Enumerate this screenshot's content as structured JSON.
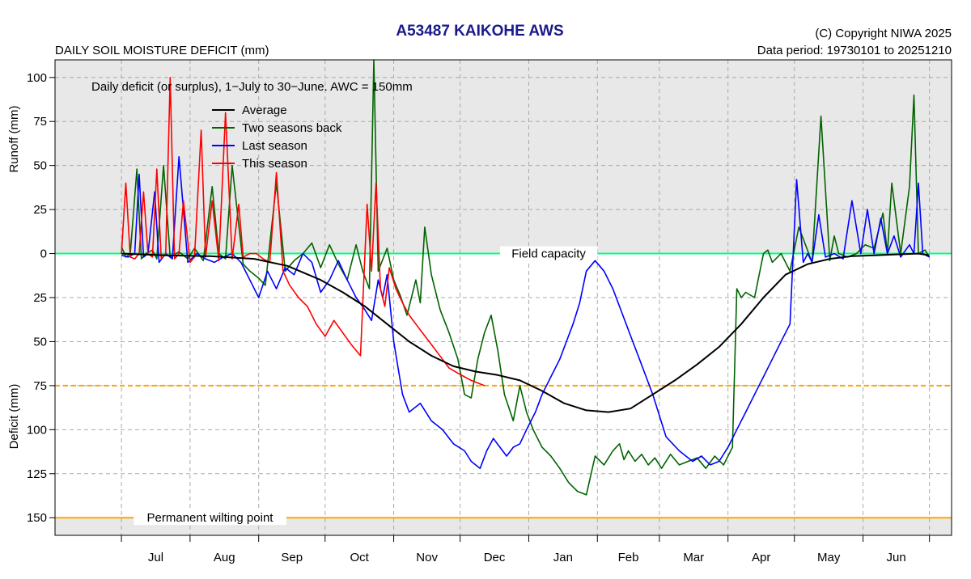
{
  "header": {
    "title": "A53487  KAIKOHE AWS",
    "subtitle": "DAILY SOIL MOISTURE DEFICIT (mm)",
    "copyright": "(C) Copyright NIWA  2025",
    "data_period": "Data period:  19730101  to  20251210"
  },
  "chart_data": {
    "type": "line",
    "title": "A53487  KAIKOHE AWS",
    "annotation": "Daily deficit (or surplus), 1−July to 30−June.  AWC = 150mm",
    "ylabel_top": "Runoff (mm)",
    "ylabel_bottom": "Deficit (mm)",
    "x_unit": "day of season (0 = 1 July)",
    "xlim": [
      -30,
      375
    ],
    "ylim_top_to_bottom": [
      110,
      -160
    ],
    "y_ticks": [
      100,
      75,
      50,
      25,
      0,
      -25,
      -50,
      -75,
      -100,
      -125,
      -150
    ],
    "y_tick_labels": [
      "100",
      "75",
      "50",
      "25",
      "0",
      "25",
      "50",
      "75",
      "100",
      "125",
      "150"
    ],
    "months": [
      "Jul",
      "Aug",
      "Sep",
      "Oct",
      "Nov",
      "Dec",
      "Jan",
      "Feb",
      "Mar",
      "Apr",
      "May",
      "Jun"
    ],
    "month_starts": [
      0,
      31,
      62,
      92,
      123,
      153,
      184,
      215,
      243,
      274,
      304,
      335,
      365
    ],
    "grid": true,
    "legend_position": "top-left",
    "colors": {
      "average": "#000000",
      "two_seasons_back": "#006400",
      "last_season": "#0000ff",
      "this_season": "#ff0000",
      "field_capacity": "#00ff7f",
      "permanent_wilting_point": "#ffa500",
      "mid_line": "#ffa500",
      "shade": "#e8e8e8",
      "grid": "#aaaaaa"
    },
    "reference_lines": [
      {
        "label": "Field capacity",
        "value": 0,
        "label_at": 193
      },
      {
        "label": "",
        "value": -75
      },
      {
        "label": "Permanent wilting point",
        "value": -150,
        "label_at": 40
      }
    ],
    "series": [
      {
        "key": "average",
        "name": "Average",
        "x": [
          0,
          20,
          40,
          60,
          75,
          90,
          100,
          110,
          120,
          130,
          140,
          150,
          160,
          170,
          180,
          190,
          200,
          210,
          220,
          230,
          240,
          250,
          260,
          270,
          280,
          290,
          300,
          310,
          320,
          330,
          340,
          350,
          360,
          365
        ],
        "y": [
          0,
          -1,
          -1.5,
          -3,
          -7,
          -15,
          -22,
          -30,
          -40,
          -50,
          -58,
          -64,
          -67,
          -69,
          -72,
          -78,
          -85,
          -89,
          -90,
          -88,
          -80,
          -72,
          -63,
          -53,
          -40,
          -25,
          -12,
          -6,
          -3,
          -1.5,
          -1,
          -0.5,
          0,
          -1
        ]
      },
      {
        "key": "two_seasons_back",
        "name": "Two seasons back",
        "x": [
          0,
          2,
          4,
          7,
          9,
          11,
          14,
          16,
          19,
          22,
          26,
          30,
          33,
          37,
          41,
          44,
          47,
          50,
          55,
          58,
          62,
          65,
          70,
          74,
          78,
          82,
          86,
          90,
          94,
          98,
          102,
          106,
          109,
          112,
          114,
          116,
          120,
          123,
          126,
          129,
          133,
          135,
          137,
          140,
          144,
          148,
          152,
          155,
          158,
          161,
          164,
          167,
          170,
          173,
          177,
          180,
          183,
          186,
          190,
          194,
          198,
          202,
          206,
          210,
          214,
          218,
          222,
          225,
          227,
          229,
          232,
          235,
          238,
          241,
          244,
          248,
          252,
          256,
          260,
          264,
          268,
          272,
          276,
          278,
          280,
          282,
          286,
          290,
          292,
          294,
          298,
          302,
          306,
          312,
          316,
          320,
          322,
          324,
          328,
          332,
          336,
          340,
          344,
          346,
          348,
          352,
          356,
          358,
          360,
          363,
          365
        ],
        "y": [
          4,
          -2,
          0,
          48,
          -3,
          0,
          2,
          -3,
          50,
          -2,
          1,
          -3,
          3,
          -4,
          38,
          0,
          -3,
          50,
          -6,
          -10,
          -14,
          -18,
          40,
          -10,
          -4,
          0,
          6,
          -8,
          5,
          -6,
          -15,
          5,
          -10,
          -20,
          110,
          -10,
          3,
          -15,
          -24,
          -35,
          -15,
          -28,
          15,
          -12,
          -32,
          -45,
          -60,
          -80,
          -82,
          -60,
          -45,
          -35,
          -55,
          -80,
          -95,
          -75,
          -90,
          -100,
          -110,
          -115,
          -122,
          -130,
          -135,
          -137,
          -115,
          -120,
          -112,
          -108,
          -117,
          -112,
          -118,
          -114,
          -120,
          -116,
          -122,
          -114,
          -120,
          -118,
          -116,
          -122,
          -115,
          -120,
          -110,
          -20,
          -25,
          -22,
          -25,
          0,
          2,
          -5,
          0,
          -10,
          15,
          -5,
          78,
          -4,
          10,
          0,
          -2,
          0,
          5,
          3,
          23,
          0,
          40,
          0,
          38,
          90,
          0,
          2,
          -2
        ]
      },
      {
        "key": "last_season",
        "name": "Last season",
        "x": [
          0,
          3,
          6,
          8,
          10,
          12,
          15,
          17,
          20,
          23,
          26,
          30,
          34,
          38,
          42,
          46,
          50,
          54,
          58,
          62,
          66,
          70,
          74,
          78,
          82,
          86,
          90,
          94,
          98,
          102,
          106,
          110,
          113,
          116,
          118,
          120,
          123,
          125,
          127,
          130,
          135,
          140,
          145,
          150,
          155,
          158,
          162,
          165,
          168,
          171,
          174,
          177,
          180,
          183,
          187,
          190,
          194,
          198,
          201,
          204,
          207,
          210,
          214,
          218,
          222,
          225,
          228,
          231,
          234,
          237,
          240,
          243,
          246,
          249,
          252,
          255,
          258,
          262,
          266,
          270,
          274,
          278,
          282,
          286,
          290,
          294,
          298,
          302,
          305,
          308,
          310,
          312,
          315,
          318,
          322,
          326,
          330,
          334,
          337,
          340,
          343,
          346,
          349,
          352,
          356,
          358,
          360,
          362,
          365
        ],
        "y": [
          -1,
          -2,
          0,
          45,
          -2,
          0,
          35,
          -5,
          0,
          -3,
          55,
          -5,
          0,
          -3,
          -5,
          -2,
          0,
          -5,
          -15,
          -25,
          -10,
          -20,
          -8,
          -12,
          0,
          -5,
          -22,
          -15,
          -4,
          -15,
          -25,
          -32,
          -38,
          -15,
          -25,
          -12,
          -50,
          -65,
          -80,
          -90,
          -85,
          -95,
          -100,
          -108,
          -112,
          -118,
          -122,
          -112,
          -105,
          -110,
          -115,
          -110,
          -108,
          -100,
          -90,
          -80,
          -70,
          -60,
          -50,
          -40,
          -28,
          -10,
          -4,
          -10,
          -20,
          -30,
          -40,
          -50,
          -60,
          -70,
          -80,
          -92,
          -104,
          -108,
          -112,
          -115,
          -118,
          -115,
          -120,
          -118,
          -110,
          -100,
          -90,
          -80,
          -70,
          -60,
          -50,
          -40,
          42,
          -5,
          0,
          -5,
          22,
          -2,
          0,
          -3,
          30,
          0,
          25,
          0,
          20,
          0,
          10,
          -2,
          5,
          0,
          40,
          0,
          -2
        ]
      },
      {
        "key": "this_season",
        "name": "This season",
        "x": [
          0,
          2,
          4,
          6,
          8,
          10,
          12,
          14,
          16,
          18,
          20,
          22,
          24,
          26,
          28,
          31,
          33,
          36,
          38,
          41,
          44,
          47,
          50,
          53,
          55,
          58,
          61,
          64,
          67,
          70,
          73,
          76,
          80,
          84,
          88,
          92,
          96,
          100,
          104,
          108,
          111,
          113,
          115,
          117,
          119,
          121,
          124,
          127,
          130,
          133,
          136,
          139,
          142,
          145,
          148,
          152,
          155,
          158,
          160,
          162,
          164
        ],
        "y": [
          0,
          40,
          -2,
          -3,
          0,
          35,
          0,
          -2,
          48,
          -3,
          0,
          100,
          -3,
          0,
          30,
          -5,
          -2,
          70,
          -2,
          30,
          -4,
          80,
          -3,
          28,
          -2,
          0,
          0,
          -3,
          -5,
          46,
          -10,
          -18,
          -25,
          -30,
          -40,
          -47,
          -38,
          -45,
          -52,
          -58,
          28,
          -10,
          40,
          -20,
          -30,
          -8,
          -20,
          -28,
          -35,
          -40,
          -45,
          -50,
          -55,
          -60,
          -65,
          -68,
          -70,
          -72,
          -73,
          -74,
          -75
        ]
      }
    ]
  }
}
